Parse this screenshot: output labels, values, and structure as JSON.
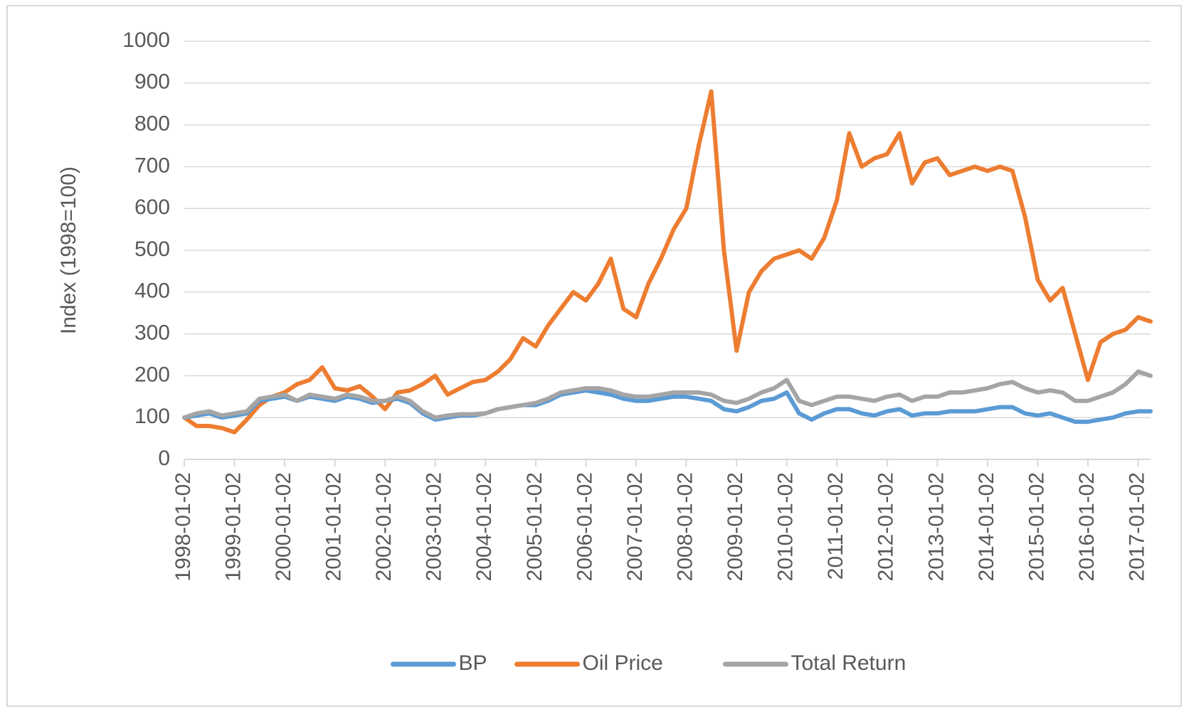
{
  "chart_data": {
    "type": "line",
    "y_label": "Index (1998=100)",
    "x": [
      "1998-01-02",
      "1998-04-02",
      "1998-07-02",
      "1998-10-02",
      "1999-01-02",
      "1999-04-02",
      "1999-07-02",
      "1999-10-02",
      "2000-01-02",
      "2000-04-02",
      "2000-07-02",
      "2000-10-02",
      "2001-01-02",
      "2001-04-02",
      "2001-07-02",
      "2001-10-02",
      "2002-01-02",
      "2002-04-02",
      "2002-07-02",
      "2002-10-02",
      "2003-01-02",
      "2003-04-02",
      "2003-07-02",
      "2003-10-02",
      "2004-01-02",
      "2004-04-02",
      "2004-07-02",
      "2004-10-02",
      "2005-01-02",
      "2005-04-02",
      "2005-07-02",
      "2005-10-02",
      "2006-01-02",
      "2006-04-02",
      "2006-07-02",
      "2006-10-02",
      "2007-01-02",
      "2007-04-02",
      "2007-07-02",
      "2007-10-02",
      "2008-01-02",
      "2008-04-02",
      "2008-07-02",
      "2008-10-02",
      "2009-01-02",
      "2009-04-02",
      "2009-07-02",
      "2009-10-02",
      "2010-01-02",
      "2010-04-02",
      "2010-07-02",
      "2010-10-02",
      "2011-01-02",
      "2011-04-02",
      "2011-07-02",
      "2011-10-02",
      "2012-01-02",
      "2012-04-02",
      "2012-07-02",
      "2012-10-02",
      "2013-01-02",
      "2013-04-02",
      "2013-07-02",
      "2013-10-02",
      "2014-01-02",
      "2014-04-02",
      "2014-07-02",
      "2014-10-02",
      "2015-01-02",
      "2015-04-02",
      "2015-07-02",
      "2015-10-02",
      "2016-01-02",
      "2016-04-02",
      "2016-07-02",
      "2016-10-02",
      "2017-01-02",
      "2017-04-02"
    ],
    "series": [
      {
        "name": "BP",
        "color": "#5b9bd5",
        "values": [
          100,
          105,
          110,
          100,
          105,
          110,
          140,
          145,
          150,
          140,
          150,
          145,
          140,
          150,
          145,
          135,
          140,
          145,
          135,
          110,
          95,
          100,
          105,
          105,
          110,
          120,
          125,
          130,
          130,
          140,
          155,
          160,
          165,
          160,
          155,
          145,
          140,
          140,
          145,
          150,
          150,
          145,
          140,
          120,
          115,
          125,
          140,
          145,
          160,
          110,
          95,
          110,
          120,
          120,
          110,
          105,
          115,
          120,
          105,
          110,
          110,
          115,
          115,
          115,
          120,
          125,
          125,
          110,
          105,
          110,
          100,
          90,
          90,
          95,
          100,
          110,
          115,
          115
        ]
      },
      {
        "name": "Oil Price",
        "color": "#ed7d31",
        "values": [
          100,
          80,
          80,
          75,
          65,
          95,
          130,
          150,
          160,
          180,
          190,
          220,
          170,
          165,
          175,
          150,
          120,
          160,
          165,
          180,
          200,
          155,
          170,
          185,
          190,
          210,
          240,
          290,
          270,
          320,
          360,
          400,
          380,
          420,
          480,
          360,
          340,
          420,
          480,
          550,
          600,
          750,
          880,
          500,
          260,
          400,
          450,
          480,
          490,
          500,
          480,
          530,
          620,
          780,
          700,
          720,
          730,
          780,
          660,
          710,
          720,
          680,
          690,
          700,
          690,
          700,
          690,
          580,
          430,
          380,
          410,
          300,
          190,
          280,
          300,
          310,
          340,
          330
        ]
      },
      {
        "name": "Total Return",
        "color": "#a5a5a5",
        "values": [
          100,
          110,
          115,
          105,
          110,
          115,
          145,
          150,
          155,
          140,
          155,
          150,
          145,
          155,
          150,
          140,
          140,
          150,
          140,
          115,
          100,
          105,
          108,
          108,
          110,
          120,
          125,
          130,
          135,
          145,
          160,
          165,
          170,
          170,
          165,
          155,
          150,
          150,
          155,
          160,
          160,
          160,
          155,
          140,
          135,
          145,
          160,
          170,
          190,
          140,
          130,
          140,
          150,
          150,
          145,
          140,
          150,
          155,
          140,
          150,
          150,
          160,
          160,
          165,
          170,
          180,
          185,
          170,
          160,
          165,
          160,
          140,
          140,
          150,
          160,
          180,
          210,
          200
        ]
      }
    ],
    "xlim": [
      "1998-01-02",
      "2017-04-02"
    ],
    "xticks": [
      "1998-01-02",
      "1999-01-02",
      "2000-01-02",
      "2001-01-02",
      "2002-01-02",
      "2003-01-02",
      "2004-01-02",
      "2005-01-02",
      "2006-01-02",
      "2007-01-02",
      "2008-01-02",
      "2009-01-02",
      "2010-01-02",
      "2011-01-02",
      "2012-01-02",
      "2013-01-02",
      "2014-01-02",
      "2015-01-02",
      "2016-01-02",
      "2017-01-02"
    ],
    "ylim": [
      0,
      1000
    ],
    "yticks": [
      0,
      100,
      200,
      300,
      400,
      500,
      600,
      700,
      800,
      900,
      1000
    ],
    "grid": true,
    "legend": "bottom"
  }
}
